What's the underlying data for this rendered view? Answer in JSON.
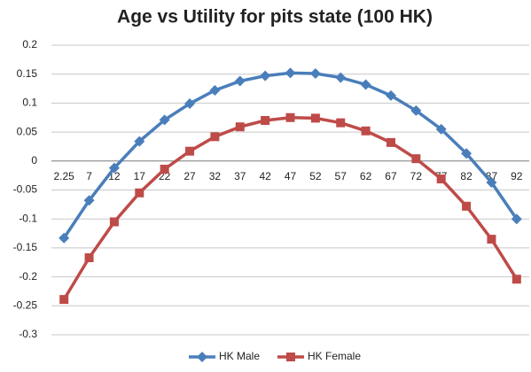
{
  "chart_data": {
    "type": "line",
    "title": "Age vs Utility for pits state (100 HK)",
    "categories": [
      "2.25",
      "7",
      "12",
      "17",
      "22",
      "27",
      "32",
      "37",
      "42",
      "47",
      "52",
      "57",
      "62",
      "67",
      "72",
      "77",
      "82",
      "87",
      "92"
    ],
    "series": [
      {
        "name": "HK Male",
        "color": "#4a7ebb",
        "marker": "diamond",
        "values": [
          -0.133,
          -0.068,
          -0.012,
          0.034,
          0.071,
          0.099,
          0.122,
          0.138,
          0.147,
          0.152,
          0.151,
          0.144,
          0.132,
          0.113,
          0.087,
          0.055,
          0.013,
          -0.037,
          -0.1
        ]
      },
      {
        "name": "HK Female",
        "color": "#be4b48",
        "marker": "square",
        "values": [
          -0.239,
          -0.167,
          -0.105,
          -0.055,
          -0.014,
          0.017,
          0.042,
          0.059,
          0.07,
          0.075,
          0.074,
          0.066,
          0.052,
          0.032,
          0.004,
          -0.031,
          -0.078,
          -0.135,
          -0.204
        ]
      }
    ],
    "ylim": [
      -0.3,
      0.2
    ],
    "yticks": [
      -0.3,
      -0.25,
      -0.2,
      -0.15,
      -0.1,
      -0.05,
      0,
      0.05,
      0.1,
      0.15,
      0.2
    ],
    "grid": true,
    "legend": "bottom"
  }
}
